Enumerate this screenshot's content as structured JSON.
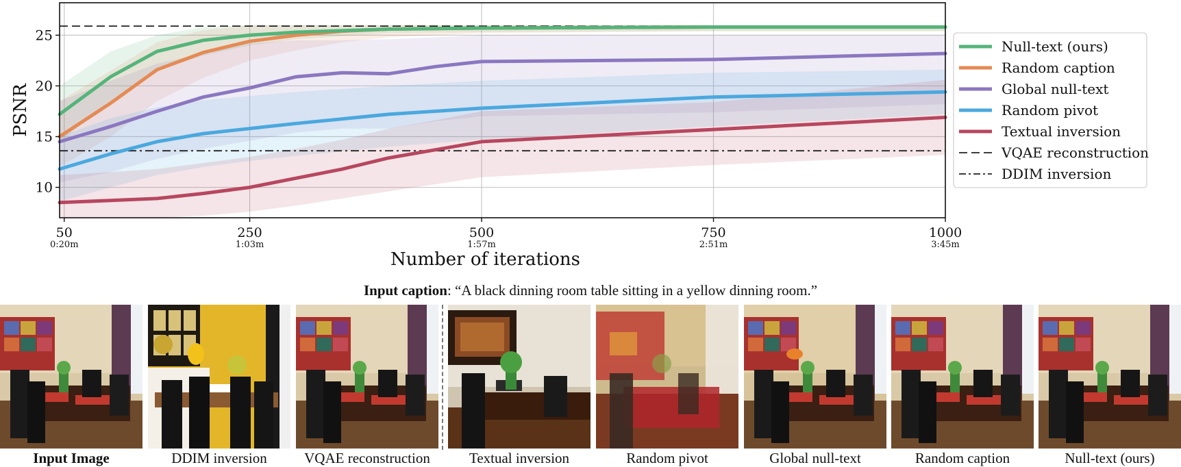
{
  "chart_data": {
    "type": "line",
    "title": "",
    "xlabel": "Number of iterations",
    "ylabel": "PSNR",
    "xlim": [
      45,
      1000
    ],
    "ylim": [
      7,
      28.2
    ],
    "yticks": [
      10,
      15,
      20,
      25
    ],
    "xticks": [
      {
        "value": 50,
        "label": "50",
        "sublabel": "0:20m"
      },
      {
        "value": 250,
        "label": "250",
        "sublabel": "1:03m"
      },
      {
        "value": 500,
        "label": "500",
        "sublabel": "1:57m"
      },
      {
        "value": 750,
        "label": "750",
        "sublabel": "2:51m"
      },
      {
        "value": 1000,
        "label": "1000",
        "sublabel": "3:45m"
      }
    ],
    "grid": true,
    "legend_position": "right",
    "series": [
      {
        "name": "Null-text (ours)",
        "color": "#55b47a",
        "x": [
          45,
          100,
          150,
          200,
          250,
          300,
          400,
          500,
          750,
          1000
        ],
        "y": [
          17.2,
          20.9,
          23.4,
          24.5,
          25.0,
          25.3,
          25.6,
          25.7,
          25.8,
          25.8
        ],
        "band": [
          [
            14.5,
            20.0
          ],
          [
            18.5,
            23.4
          ],
          [
            21.5,
            25.0
          ],
          [
            23.0,
            25.8
          ],
          [
            24.0,
            26.0
          ],
          [
            24.6,
            26.0
          ],
          [
            25.2,
            26.0
          ],
          [
            25.3,
            26.0
          ],
          [
            25.4,
            26.0
          ],
          [
            25.4,
            26.0
          ]
        ]
      },
      {
        "name": "Random caption",
        "color": "#e58a55",
        "x": [
          45,
          100,
          150,
          200,
          250,
          300,
          350,
          400,
          500,
          750,
          1000
        ],
        "y": [
          15.0,
          18.3,
          21.6,
          23.3,
          24.4,
          25.0,
          25.4,
          25.6,
          25.7,
          25.8,
          25.8
        ],
        "band": [
          [
            12.0,
            18.5
          ],
          [
            15.0,
            21.5
          ],
          [
            18.5,
            24.3
          ],
          [
            20.8,
            25.5
          ],
          [
            22.5,
            26.0
          ],
          [
            23.5,
            26.0
          ],
          [
            24.3,
            26.0
          ],
          [
            24.8,
            26.0
          ],
          [
            25.2,
            26.0
          ],
          [
            25.4,
            26.0
          ],
          [
            25.4,
            26.0
          ]
        ]
      },
      {
        "name": "Global null-text",
        "color": "#8b77c0",
        "x": [
          45,
          100,
          150,
          200,
          250,
          300,
          350,
          400,
          450,
          500,
          750,
          1000
        ],
        "y": [
          14.5,
          16.0,
          17.5,
          18.9,
          19.8,
          20.9,
          21.3,
          21.2,
          21.9,
          22.4,
          22.6,
          23.2
        ],
        "band": [
          [
            10.5,
            18.5
          ],
          [
            11.5,
            20.5
          ],
          [
            12.8,
            22.2
          ],
          [
            13.8,
            23.2
          ],
          [
            14.6,
            24.2
          ],
          [
            15.4,
            24.5
          ],
          [
            15.8,
            24.5
          ],
          [
            15.8,
            24.6
          ],
          [
            16.5,
            24.8
          ],
          [
            17.0,
            25.0
          ],
          [
            17.4,
            25.0
          ],
          [
            18.2,
            25.0
          ]
        ]
      },
      {
        "name": "Random pivot",
        "color": "#4aa8de",
        "x": [
          45,
          100,
          150,
          200,
          250,
          300,
          400,
          500,
          750,
          1000
        ],
        "y": [
          11.8,
          13.3,
          14.5,
          15.3,
          15.8,
          16.3,
          17.2,
          17.8,
          18.9,
          19.4
        ],
        "band": [
          [
            8.6,
            15.0
          ],
          [
            10.0,
            16.8
          ],
          [
            11.2,
            17.9
          ],
          [
            12.0,
            18.6
          ],
          [
            12.6,
            19.0
          ],
          [
            13.1,
            19.4
          ],
          [
            14.0,
            20.0
          ],
          [
            14.7,
            20.5
          ],
          [
            16.0,
            21.3
          ],
          [
            17.2,
            21.6
          ]
        ]
      },
      {
        "name": "Textual inversion",
        "color": "#b7475f",
        "x": [
          45,
          100,
          150,
          200,
          250,
          300,
          350,
          400,
          450,
          500,
          750,
          1000
        ],
        "y": [
          8.5,
          8.7,
          8.9,
          9.4,
          10.0,
          10.9,
          11.8,
          12.9,
          13.7,
          14.5,
          15.7,
          16.9
        ],
        "band": [
          [
            7.0,
            11.2
          ],
          [
            7.0,
            11.5
          ],
          [
            7.0,
            11.8
          ],
          [
            7.2,
            12.4
          ],
          [
            7.6,
            13.0
          ],
          [
            8.2,
            13.8
          ],
          [
            8.9,
            14.7
          ],
          [
            9.6,
            15.8
          ],
          [
            10.3,
            16.6
          ],
          [
            11.0,
            17.5
          ],
          [
            12.2,
            18.4
          ],
          [
            13.2,
            20.6
          ]
        ]
      },
      {
        "name": "VQAE reconstruction",
        "color": "#222222",
        "dash": "dashed",
        "x": [
          45,
          1000
        ],
        "y": [
          25.9,
          25.9
        ]
      },
      {
        "name": "DDIM inversion",
        "color": "#222222",
        "dash": "dashdot",
        "x": [
          45,
          1000
        ],
        "y": [
          13.6,
          13.6
        ]
      }
    ]
  },
  "caption": {
    "label": "Input caption",
    "text": ": “A black dinning room table sitting in a yellow dinning room.”"
  },
  "images": [
    {
      "label": "Input Image",
      "bold": true
    },
    {
      "label": "DDIM inversion",
      "bold": false
    },
    {
      "label": "VQAE reconstruction",
      "bold": false
    },
    {
      "label": "Textual inversion",
      "bold": false
    },
    {
      "label": "Random pivot",
      "bold": false
    },
    {
      "label": "Global null-text",
      "bold": false
    },
    {
      "label": "Random caption",
      "bold": false
    },
    {
      "label": "Null-text (ours)",
      "bold": false
    }
  ]
}
